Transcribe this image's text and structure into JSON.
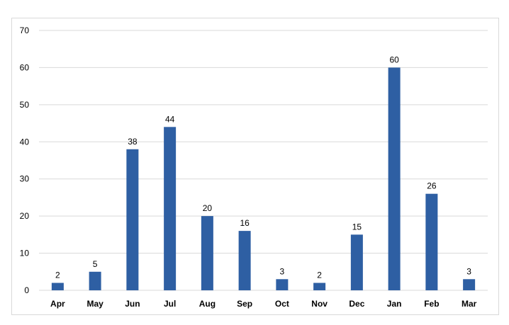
{
  "chart_data": {
    "type": "bar",
    "categories": [
      "Apr",
      "May",
      "Jun",
      "Jul",
      "Aug",
      "Sep",
      "Oct",
      "Nov",
      "Dec",
      "Jan",
      "Feb",
      "Mar"
    ],
    "values": [
      2,
      5,
      38,
      44,
      20,
      16,
      3,
      2,
      15,
      60,
      26,
      3
    ],
    "title": "",
    "xlabel": "",
    "ylabel": "",
    "ylim": [
      0,
      70
    ],
    "yticks": [
      0,
      10,
      20,
      30,
      40,
      50,
      60,
      70
    ],
    "grid": true,
    "legend": "none",
    "bar_color": "#2e5fa3",
    "grid_color": "#d9d9d9",
    "data_labels": true
  }
}
